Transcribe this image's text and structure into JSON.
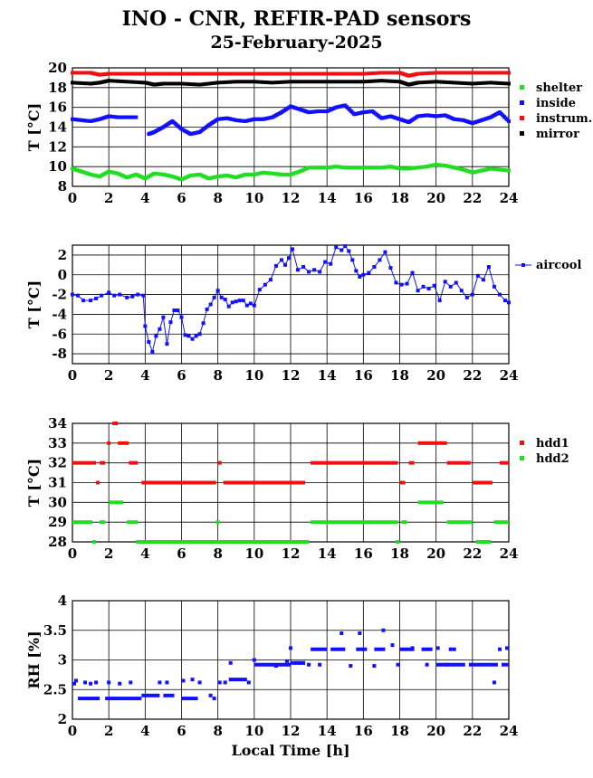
{
  "header": {
    "title": "INO - CNR, REFIR-PAD sensors",
    "date": "25-February-2025"
  },
  "chart_data": [
    {
      "type": "scatter",
      "ylabel": "T [°C]",
      "xlabel": "",
      "xlim": [
        0,
        24
      ],
      "ylim": [
        8,
        20
      ],
      "yticks": [
        8,
        10,
        12,
        14,
        16,
        18,
        20
      ],
      "xticks": [
        0,
        2,
        4,
        6,
        8,
        10,
        12,
        14,
        16,
        18,
        20,
        22,
        24
      ],
      "grid": true,
      "legend_position": "right",
      "series": [
        {
          "name": "shelter",
          "color": "#22dd22",
          "x": [
            0,
            0.5,
            1,
            1.5,
            2,
            2.5,
            3,
            3.5,
            4,
            4.5,
            5,
            5.5,
            6,
            6.5,
            7,
            7.5,
            8,
            8.5,
            9,
            9.5,
            10,
            10.5,
            11,
            11.5,
            12,
            12.5,
            13,
            13.5,
            14,
            14.5,
            15,
            15.5,
            16,
            16.5,
            17,
            17.5,
            18,
            18.5,
            19,
            19.5,
            20,
            20.5,
            21,
            21.5,
            22,
            22.5,
            23,
            23.5,
            24
          ],
          "y": [
            9.8,
            9.5,
            9.2,
            9.0,
            9.5,
            9.3,
            8.9,
            9.2,
            8.8,
            9.3,
            9.2,
            9.0,
            8.7,
            9.1,
            9.2,
            8.8,
            9.0,
            9.1,
            8.9,
            9.2,
            9.2,
            9.4,
            9.3,
            9.2,
            9.2,
            9.5,
            9.9,
            9.9,
            9.9,
            10.0,
            9.9,
            9.9,
            9.9,
            9.9,
            9.9,
            10.0,
            9.8,
            9.8,
            9.9,
            10.0,
            10.2,
            10.1,
            9.9,
            9.7,
            9.4,
            9.6,
            9.8,
            9.7,
            9.6
          ]
        },
        {
          "name": "inside",
          "color": "#1111ff",
          "x": [
            0,
            0.5,
            1,
            1.5,
            2,
            2.5,
            3,
            3.5,
            4,
            4.2,
            4.5,
            5,
            5.5,
            6,
            6.5,
            7,
            7.5,
            8,
            8.5,
            9,
            9.5,
            10,
            10.5,
            11,
            11.5,
            12,
            12.5,
            13,
            13.5,
            14,
            14.5,
            15,
            15.5,
            16,
            16.5,
            17,
            17.5,
            18,
            18.5,
            19,
            19.5,
            20,
            20.5,
            21,
            21.5,
            22,
            22.5,
            23,
            23.5,
            24
          ],
          "y": [
            14.8,
            14.7,
            14.6,
            14.8,
            15.1,
            15.0,
            15.0,
            15.0,
            null,
            13.3,
            13.5,
            14.0,
            14.6,
            13.8,
            13.3,
            13.5,
            14.2,
            14.8,
            14.9,
            14.7,
            14.6,
            14.8,
            14.8,
            15.0,
            15.5,
            16.1,
            15.8,
            15.5,
            15.6,
            15.6,
            16.0,
            16.2,
            15.3,
            15.5,
            15.6,
            14.9,
            15.1,
            14.8,
            14.5,
            15.1,
            15.2,
            15.1,
            15.2,
            14.8,
            14.7,
            14.4,
            14.7,
            15.0,
            15.5,
            14.6
          ]
        },
        {
          "name": "instrum.",
          "color": "#ee1111",
          "x": [
            0,
            1,
            1.5,
            2,
            3,
            4,
            5,
            6,
            7,
            8,
            9,
            10,
            11,
            12,
            13,
            14,
            15,
            16,
            17,
            18,
            18.5,
            19,
            20,
            21,
            22,
            23,
            24
          ],
          "y": [
            19.5,
            19.5,
            19.3,
            19.4,
            19.4,
            19.4,
            19.4,
            19.4,
            19.4,
            19.4,
            19.4,
            19.4,
            19.4,
            19.4,
            19.4,
            19.4,
            19.4,
            19.4,
            19.5,
            19.5,
            19.2,
            19.4,
            19.5,
            19.5,
            19.5,
            19.5,
            19.5
          ]
        },
        {
          "name": "mirror",
          "color": "#000000",
          "x": [
            0,
            1,
            1.5,
            2,
            3,
            4,
            4.5,
            5,
            6,
            7,
            8,
            9,
            10,
            11,
            12,
            13,
            14,
            15,
            16,
            17,
            18,
            18.5,
            19,
            20,
            21,
            22,
            23,
            24
          ],
          "y": [
            18.5,
            18.4,
            18.5,
            18.7,
            18.6,
            18.5,
            18.3,
            18.4,
            18.4,
            18.3,
            18.5,
            18.6,
            18.6,
            18.5,
            18.6,
            18.6,
            18.6,
            18.6,
            18.6,
            18.7,
            18.6,
            18.3,
            18.5,
            18.6,
            18.5,
            18.4,
            18.5,
            18.4
          ]
        }
      ]
    },
    {
      "type": "line",
      "ylabel": "T [°C]",
      "xlabel": "",
      "xlim": [
        0,
        24
      ],
      "ylim": [
        -9,
        3
      ],
      "yticks": [
        -8,
        -6,
        -4,
        -2,
        0,
        2
      ],
      "xticks": [
        0,
        2,
        4,
        6,
        8,
        10,
        12,
        14,
        16,
        18,
        20,
        22,
        24
      ],
      "grid": true,
      "legend_position": "right",
      "series": [
        {
          "name": "aircool",
          "color": "#1111ff",
          "x": [
            0,
            0.3,
            0.6,
            1,
            1.3,
            1.6,
            2,
            2.3,
            2.6,
            3,
            3.3,
            3.6,
            3.9,
            4.0,
            4.2,
            4.4,
            4.6,
            4.8,
            5.0,
            5.2,
            5.4,
            5.6,
            5.8,
            6.0,
            6.2,
            6.4,
            6.6,
            6.8,
            7.0,
            7.2,
            7.4,
            7.6,
            7.8,
            8.0,
            8.2,
            8.4,
            8.6,
            8.8,
            9.0,
            9.2,
            9.4,
            9.6,
            9.8,
            10.0,
            10.3,
            10.6,
            10.9,
            11.2,
            11.5,
            11.7,
            11.9,
            12.1,
            12.4,
            12.7,
            13.0,
            13.3,
            13.6,
            13.9,
            14.2,
            14.5,
            14.8,
            15.0,
            15.2,
            15.4,
            15.6,
            15.8,
            16.0,
            16.3,
            16.6,
            16.9,
            17.2,
            17.5,
            17.8,
            18.1,
            18.4,
            18.7,
            19.0,
            19.3,
            19.6,
            19.9,
            20.2,
            20.5,
            20.8,
            21.1,
            21.4,
            21.7,
            22.0,
            22.3,
            22.6,
            22.9,
            23.2,
            23.5,
            23.8,
            24.0
          ],
          "y": [
            -2.0,
            -2.1,
            -2.6,
            -2.6,
            -2.4,
            -2.1,
            -1.8,
            -2.1,
            -2.0,
            -2.3,
            -2.2,
            -2.0,
            -2.1,
            -5.2,
            -6.8,
            -7.8,
            -6.2,
            -5.5,
            -4.3,
            -7.0,
            -4.8,
            -3.6,
            -3.6,
            -4.3,
            -6.1,
            -6.2,
            -6.5,
            -6.2,
            -6.0,
            -4.9,
            -3.5,
            -3.0,
            -2.3,
            -1.6,
            -2.3,
            -2.5,
            -3.2,
            -2.8,
            -2.7,
            -2.6,
            -2.6,
            -3.1,
            -2.9,
            -3.1,
            -1.5,
            -1.0,
            -0.5,
            0.9,
            1.5,
            1.0,
            1.7,
            2.6,
            0.5,
            0.8,
            0.3,
            0.5,
            0.3,
            1.3,
            1.1,
            2.8,
            2.5,
            2.9,
            2.4,
            1.5,
            0.4,
            -0.2,
            0.0,
            0.2,
            0.8,
            1.5,
            2.3,
            0.7,
            -0.8,
            -1.0,
            -0.9,
            0.2,
            -1.6,
            -1.2,
            -1.4,
            -1.1,
            -2.6,
            -0.7,
            -1.2,
            -0.8,
            -1.6,
            -2.3,
            -2.0,
            -0.1,
            -0.5,
            0.8,
            -1.2,
            -2.0,
            -2.6,
            -2.8
          ]
        }
      ]
    },
    {
      "type": "scatter",
      "ylabel": "T [°C]",
      "xlabel": "",
      "xlim": [
        0,
        24
      ],
      "ylim": [
        28,
        34
      ],
      "yticks": [
        28,
        29,
        30,
        31,
        32,
        33,
        34
      ],
      "xticks": [
        0,
        2,
        4,
        6,
        8,
        10,
        12,
        14,
        16,
        18,
        20,
        22,
        24
      ],
      "grid": true,
      "legend_position": "right",
      "series": [
        {
          "name": "hdd1",
          "color": "#ee1111",
          "segments": [
            [
              0,
              1.3,
              32
            ],
            [
              1.5,
              1.8,
              32
            ],
            [
              1.9,
              2.1,
              33
            ],
            [
              2.2,
              2.5,
              34
            ],
            [
              2.5,
              3.1,
              33
            ],
            [
              3.1,
              3.6,
              32
            ],
            [
              3.8,
              7.9,
              31
            ],
            [
              8.0,
              8.2,
              32
            ],
            [
              8.3,
              12.8,
              31
            ],
            [
              13.1,
              17.9,
              32
            ],
            [
              18.0,
              18.3,
              31
            ],
            [
              18.5,
              18.8,
              32
            ],
            [
              19.0,
              20.6,
              33
            ],
            [
              20.6,
              21.9,
              32
            ],
            [
              22.0,
              23.1,
              31
            ],
            [
              23.5,
              24,
              32
            ]
          ],
          "points": [
            [
              1.4,
              31
            ]
          ]
        },
        {
          "name": "hdd2",
          "color": "#22dd22",
          "segments": [
            [
              0,
              1.1,
              29
            ],
            [
              1.5,
              1.8,
              29
            ],
            [
              2.0,
              2.8,
              30
            ],
            [
              3.0,
              3.6,
              29
            ],
            [
              3.5,
              13.0,
              28
            ],
            [
              13.1,
              17.9,
              29
            ],
            [
              18.1,
              18.4,
              29
            ],
            [
              19.0,
              20.4,
              30
            ],
            [
              20.6,
              22.0,
              29
            ],
            [
              23.2,
              24,
              29
            ],
            [
              1.1,
              1.3,
              28
            ],
            [
              17.8,
              18.0,
              28
            ],
            [
              22.2,
              23.0,
              28
            ]
          ],
          "points": [
            [
              8.0,
              29
            ]
          ]
        }
      ]
    },
    {
      "type": "scatter",
      "ylabel": "RH [%]",
      "xlabel": "Local Time [h]",
      "xlim": [
        0,
        24
      ],
      "ylim": [
        2,
        4
      ],
      "yticks": [
        2,
        2.5,
        3,
        3.5,
        4
      ],
      "xticks": [
        0,
        2,
        4,
        6,
        8,
        10,
        12,
        14,
        16,
        18,
        20,
        22,
        24
      ],
      "grid": true,
      "legend_position": "none",
      "series": [
        {
          "name": "",
          "color": "#1111ff",
          "segments": [
            [
              0.3,
              1.5,
              2.35
            ],
            [
              1.8,
              3.8,
              2.35
            ],
            [
              3.8,
              4.8,
              2.4
            ],
            [
              5.0,
              5.6,
              2.4
            ],
            [
              6.0,
              6.9,
              2.35
            ],
            [
              8.6,
              9.6,
              2.67
            ],
            [
              10.0,
              12.0,
              2.92
            ],
            [
              12.2,
              12.8,
              2.95
            ],
            [
              13.1,
              14.0,
              3.18
            ],
            [
              14.2,
              15.0,
              3.18
            ],
            [
              15.6,
              16.2,
              3.18
            ],
            [
              16.6,
              17.2,
              3.18
            ],
            [
              18.0,
              18.8,
              3.18
            ],
            [
              19.2,
              19.8,
              3.18
            ],
            [
              20.0,
              21.6,
              2.92
            ],
            [
              21.8,
              23.4,
              2.92
            ],
            [
              23.6,
              24,
              2.92
            ],
            [
              12.0,
              12.8,
              2.95
            ]
          ],
          "points": [
            [
              0.1,
              2.6
            ],
            [
              0.2,
              2.65
            ],
            [
              0.7,
              2.62
            ],
            [
              1.0,
              2.6
            ],
            [
              1.3,
              2.62
            ],
            [
              2.0,
              2.62
            ],
            [
              2.6,
              2.6
            ],
            [
              3.2,
              2.62
            ],
            [
              4.8,
              2.62
            ],
            [
              5.2,
              2.62
            ],
            [
              6.1,
              2.65
            ],
            [
              6.6,
              2.67
            ],
            [
              7.0,
              2.62
            ],
            [
              7.6,
              2.4
            ],
            [
              7.8,
              2.35
            ],
            [
              8.1,
              2.62
            ],
            [
              8.4,
              2.62
            ],
            [
              8.7,
              2.95
            ],
            [
              9.7,
              2.62
            ],
            [
              10.0,
              3.0
            ],
            [
              11.2,
              2.9
            ],
            [
              11.8,
              2.98
            ],
            [
              12.0,
              3.2
            ],
            [
              13.0,
              2.92
            ],
            [
              13.6,
              2.92
            ],
            [
              14.8,
              3.45
            ],
            [
              15.3,
              2.9
            ],
            [
              15.8,
              3.45
            ],
            [
              16.6,
              2.9
            ],
            [
              17.1,
              3.5
            ],
            [
              17.6,
              3.25
            ],
            [
              17.9,
              2.92
            ],
            [
              18.7,
              3.2
            ],
            [
              19.5,
              2.92
            ],
            [
              20.1,
              3.2
            ],
            [
              20.6,
              2.92
            ],
            [
              20.8,
              3.18
            ],
            [
              21.0,
              3.18
            ],
            [
              23.2,
              2.62
            ],
            [
              23.5,
              3.18
            ],
            [
              23.9,
              3.2
            ]
          ]
        }
      ]
    }
  ]
}
